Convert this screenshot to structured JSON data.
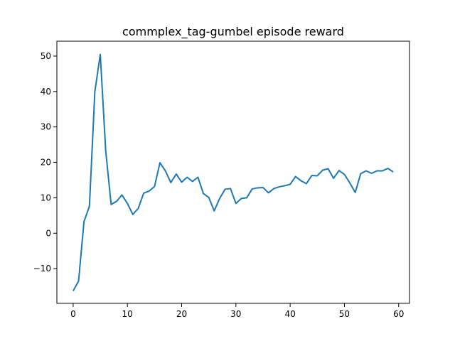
{
  "chart_data": {
    "type": "line",
    "title": "commplex_tag-gumbel episode reward",
    "xlabel": "",
    "ylabel": "",
    "xlim": [
      -3,
      62
    ],
    "ylim": [
      -19.8,
      54.2
    ],
    "xticks": [
      0,
      10,
      20,
      30,
      40,
      50,
      60
    ],
    "yticks": [
      -10,
      0,
      10,
      20,
      30,
      40,
      50
    ],
    "xtick_labels": [
      "0",
      "10",
      "20",
      "30",
      "40",
      "50",
      "60"
    ],
    "ytick_labels": [
      "−10",
      "0",
      "10",
      "20",
      "30",
      "40",
      "50"
    ],
    "grid": false,
    "line_color": "#1f77b4",
    "series": [
      {
        "x": [
          0,
          1,
          2,
          3,
          4,
          5,
          6,
          7,
          8,
          9,
          10,
          11,
          12,
          13,
          14,
          15,
          16,
          17,
          18,
          19,
          20,
          21,
          22,
          23,
          24,
          25,
          26,
          27,
          28,
          29,
          30,
          31,
          32,
          33,
          34,
          35,
          36,
          37,
          38,
          39,
          40,
          41,
          42,
          43,
          44,
          45,
          46,
          47,
          48,
          49,
          50,
          51,
          52,
          53,
          54,
          55,
          56,
          57,
          58,
          59
        ],
        "values": [
          -16.3,
          -13.5,
          3.3,
          7.6,
          40.0,
          50.5,
          23.3,
          8.1,
          9.0,
          10.8,
          8.4,
          5.3,
          7.0,
          11.3,
          11.9,
          13.2,
          19.9,
          17.6,
          14.3,
          16.7,
          14.4,
          15.8,
          14.6,
          15.8,
          11.2,
          10.1,
          6.3,
          9.8,
          12.4,
          12.6,
          8.4,
          9.8,
          10.0,
          12.5,
          12.8,
          12.9,
          11.4,
          12.6,
          13.1,
          13.4,
          13.8,
          16.0,
          14.8,
          14.0,
          16.3,
          16.2,
          17.8,
          18.2,
          15.5,
          17.7,
          16.6,
          14.2,
          11.5,
          16.8,
          17.6,
          16.9,
          17.6,
          17.6,
          18.3,
          17.3
        ]
      }
    ]
  }
}
